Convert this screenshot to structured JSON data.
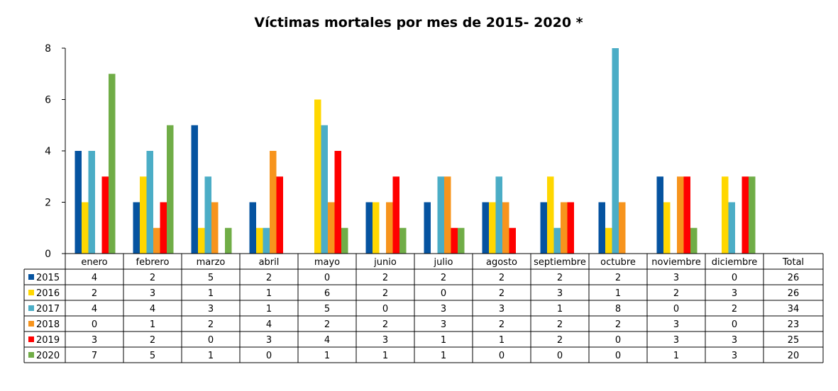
{
  "chart_data": {
    "type": "bar",
    "title": "Víctimas mortales por mes de 2015- 2020 *",
    "categories": [
      "enero",
      "febrero",
      "marzo",
      "abril",
      "mayo",
      "junio",
      "julio",
      "agosto",
      "septiembre",
      "octubre",
      "noviembre",
      "diciembre"
    ],
    "total_label": "Total",
    "ylim": [
      0,
      8
    ],
    "yticks": [
      0,
      2,
      4,
      6,
      8
    ],
    "series": [
      {
        "name": "2015",
        "color": "#0553a0",
        "values": [
          4,
          2,
          5,
          2,
          0,
          2,
          2,
          2,
          2,
          2,
          3,
          0
        ],
        "total": 26
      },
      {
        "name": "2016",
        "color": "#ffd700",
        "values": [
          2,
          3,
          1,
          1,
          6,
          2,
          0,
          2,
          3,
          1,
          2,
          3
        ],
        "total": 26
      },
      {
        "name": "2017",
        "color": "#4badc6",
        "values": [
          4,
          4,
          3,
          1,
          5,
          0,
          3,
          3,
          1,
          8,
          0,
          2
        ],
        "total": 34
      },
      {
        "name": "2018",
        "color": "#f7941d",
        "values": [
          0,
          1,
          2,
          4,
          2,
          2,
          3,
          2,
          2,
          2,
          3,
          0
        ],
        "total": 23
      },
      {
        "name": "2019",
        "color": "#ff0000",
        "values": [
          3,
          2,
          0,
          3,
          4,
          3,
          1,
          1,
          2,
          0,
          3,
          3
        ],
        "total": 25
      },
      {
        "name": "2020",
        "color": "#70ad47",
        "values": [
          7,
          5,
          1,
          0,
          1,
          1,
          1,
          0,
          0,
          0,
          1,
          3
        ],
        "total": 20
      }
    ],
    "legend": "data-table-left",
    "grid": false
  }
}
